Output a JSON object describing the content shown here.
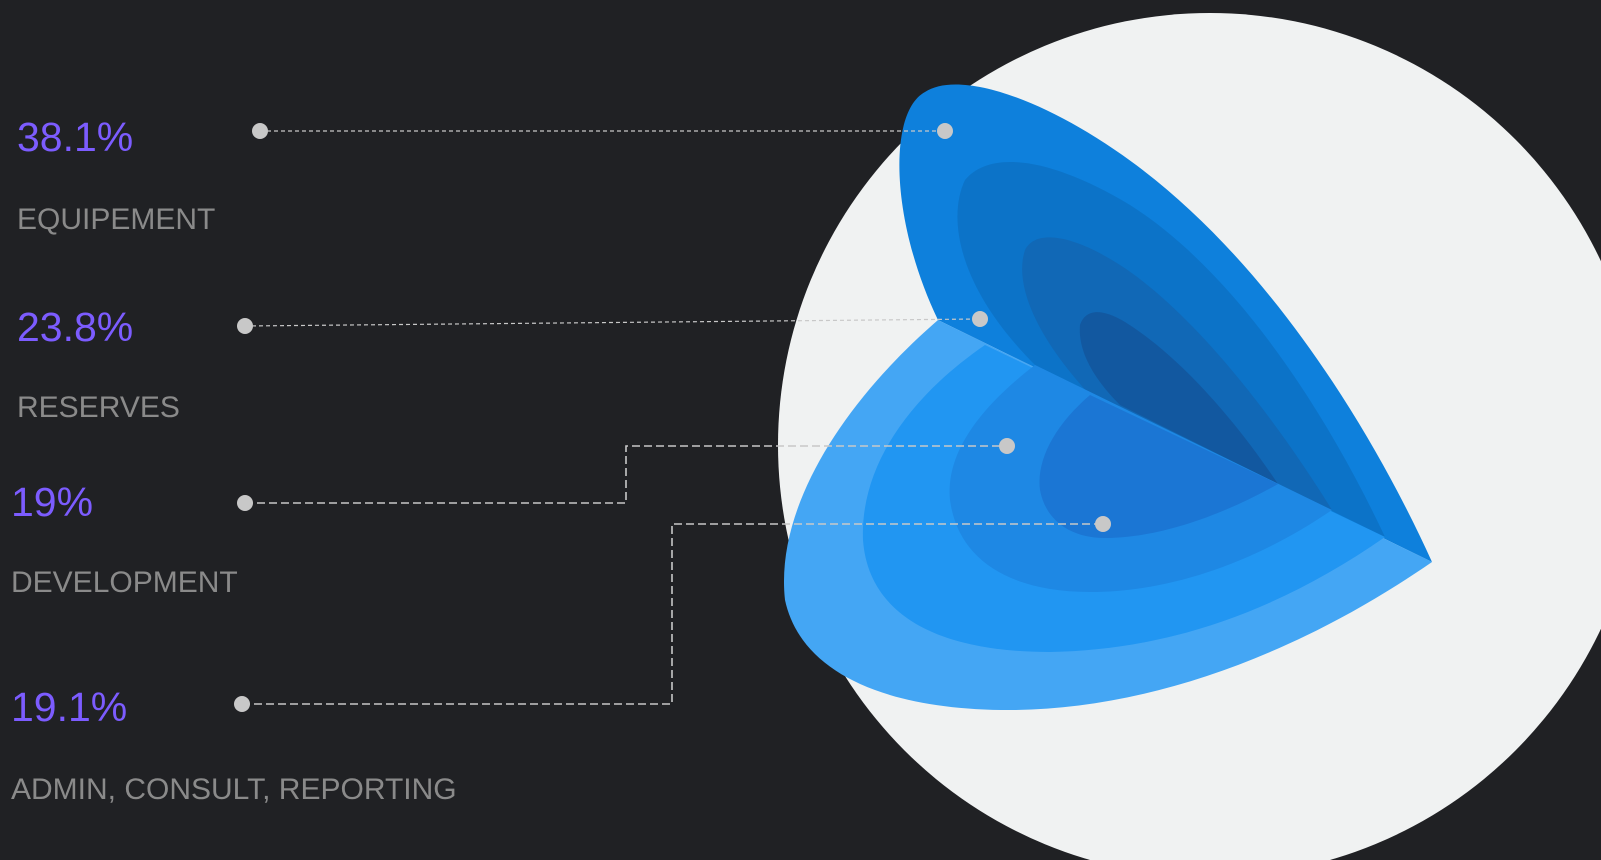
{
  "chart_data": {
    "type": "pie",
    "categories": [
      "EQUIPEMENT",
      "RESERVES",
      "DEVELOPMENT",
      "ADMIN, CONSULT, REPORTING"
    ],
    "values": [
      38.1,
      23.8,
      19,
      19.1
    ],
    "value_labels": [
      "38.1%",
      "23.8%",
      "19%",
      "19.1%"
    ],
    "title": "",
    "legend": "left"
  },
  "colors": {
    "background": "#202124",
    "disc": "#f0f2f2",
    "value_text": "#7c5cff",
    "category_text": "#8a8a8a",
    "leader_line": "#c8c8c8",
    "upper_rings": [
      "#0e80dc",
      "#0c73c8",
      "#1168b6",
      "#1258a0"
    ],
    "lower_rings": [
      "#44a6f4",
      "#2196f2",
      "#1e88e4",
      "#1b76d4"
    ]
  }
}
